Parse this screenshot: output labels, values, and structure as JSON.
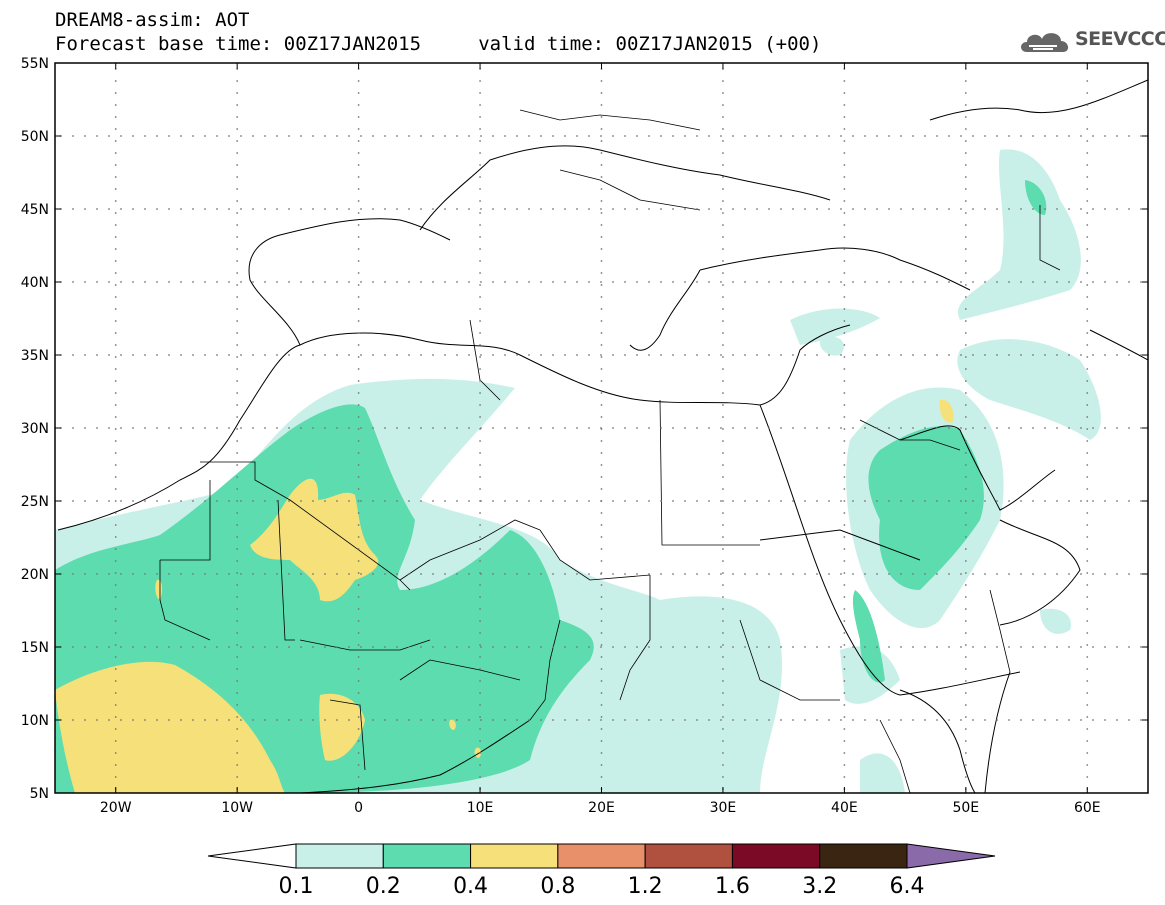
{
  "header": {
    "line1": "DREAM8-assim: AOT",
    "line2": "Forecast base time: 00Z17JAN2015     valid time: 00Z17JAN2015 (+00)"
  },
  "logo": {
    "text": "SEEVCCC",
    "icon": "cloud-icon"
  },
  "map": {
    "lon_range": [
      -25,
      65
    ],
    "lat_range": [
      5,
      55
    ],
    "lon_ticks": [
      {
        "value": -20,
        "label": "20W"
      },
      {
        "value": -10,
        "label": "10W"
      },
      {
        "value": 0,
        "label": "0"
      },
      {
        "value": 10,
        "label": "10E"
      },
      {
        "value": 20,
        "label": "20E"
      },
      {
        "value": 30,
        "label": "30E"
      },
      {
        "value": 40,
        "label": "40E"
      },
      {
        "value": 50,
        "label": "50E"
      },
      {
        "value": 60,
        "label": "60E"
      }
    ],
    "lat_ticks": [
      {
        "value": 55,
        "label": "55N"
      },
      {
        "value": 50,
        "label": "50N"
      },
      {
        "value": 45,
        "label": "45N"
      },
      {
        "value": 40,
        "label": "40N"
      },
      {
        "value": 35,
        "label": "35N"
      },
      {
        "value": 30,
        "label": "30N"
      },
      {
        "value": 25,
        "label": "25N"
      },
      {
        "value": 20,
        "label": "20N"
      },
      {
        "value": 15,
        "label": "15N"
      },
      {
        "value": 10,
        "label": "10N"
      },
      {
        "value": 5,
        "label": "5N"
      }
    ]
  },
  "colorbar": {
    "colors": [
      "#ffffff",
      "#c9f0e8",
      "#5ddcb0",
      "#f5e07a",
      "#e8906a",
      "#b0503f",
      "#7a0a25",
      "#3a2412",
      "#8a6aa8"
    ],
    "labels": [
      "0.1",
      "0.2",
      "0.4",
      "0.8",
      "1.2",
      "1.6",
      "3.2",
      "6.4"
    ]
  }
}
